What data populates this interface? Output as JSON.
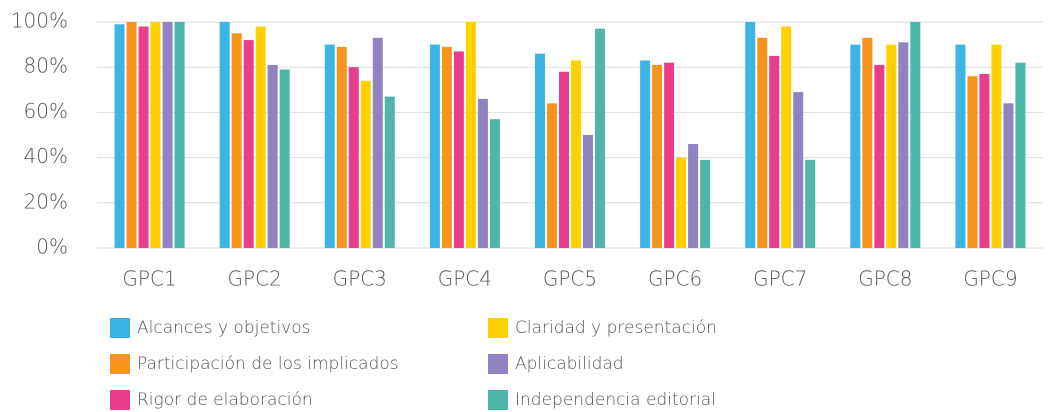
{
  "chart_data": {
    "type": "bar",
    "categories": [
      "GPC1",
      "GPC2",
      "GPC3",
      "GPC4",
      "GPC5",
      "GPC6",
      "GPC7",
      "GPC8",
      "GPC9"
    ],
    "series": [
      {
        "name": "Alcances y objetivos",
        "color": "#3cb4e5",
        "values": [
          99,
          100,
          90,
          90,
          86,
          83,
          100,
          90,
          90
        ]
      },
      {
        "name": "Participación de los implicados",
        "color": "#f7941d",
        "values": [
          100,
          95,
          89,
          89,
          64,
          81,
          93,
          93,
          76
        ]
      },
      {
        "name": "Rigor de elaboración",
        "color": "#e83e8c",
        "values": [
          98,
          92,
          80,
          87,
          78,
          82,
          85,
          81,
          77
        ]
      },
      {
        "name": "Claridad y presentación",
        "color": "#ffd100",
        "values": [
          100,
          98,
          74,
          100,
          83,
          40,
          98,
          90,
          90
        ]
      },
      {
        "name": "Aplicabilidad",
        "color": "#9183c0",
        "values": [
          100,
          81,
          93,
          66,
          50,
          46,
          69,
          91,
          64
        ]
      },
      {
        "name": "Independencia editorial",
        "color": "#4db6a8",
        "values": [
          100,
          79,
          67,
          57,
          97,
          39,
          39,
          100,
          82
        ]
      }
    ],
    "ylim": [
      0,
      100
    ],
    "yticks": [
      {
        "value": 0,
        "label": "0%"
      },
      {
        "value": 20,
        "label": "20%"
      },
      {
        "value": 40,
        "label": "40%"
      },
      {
        "value": 60,
        "label": "60%"
      },
      {
        "value": 80,
        "label": "80%"
      },
      {
        "value": 100,
        "label": "100%"
      }
    ],
    "grid": true,
    "legend": "bottom"
  }
}
